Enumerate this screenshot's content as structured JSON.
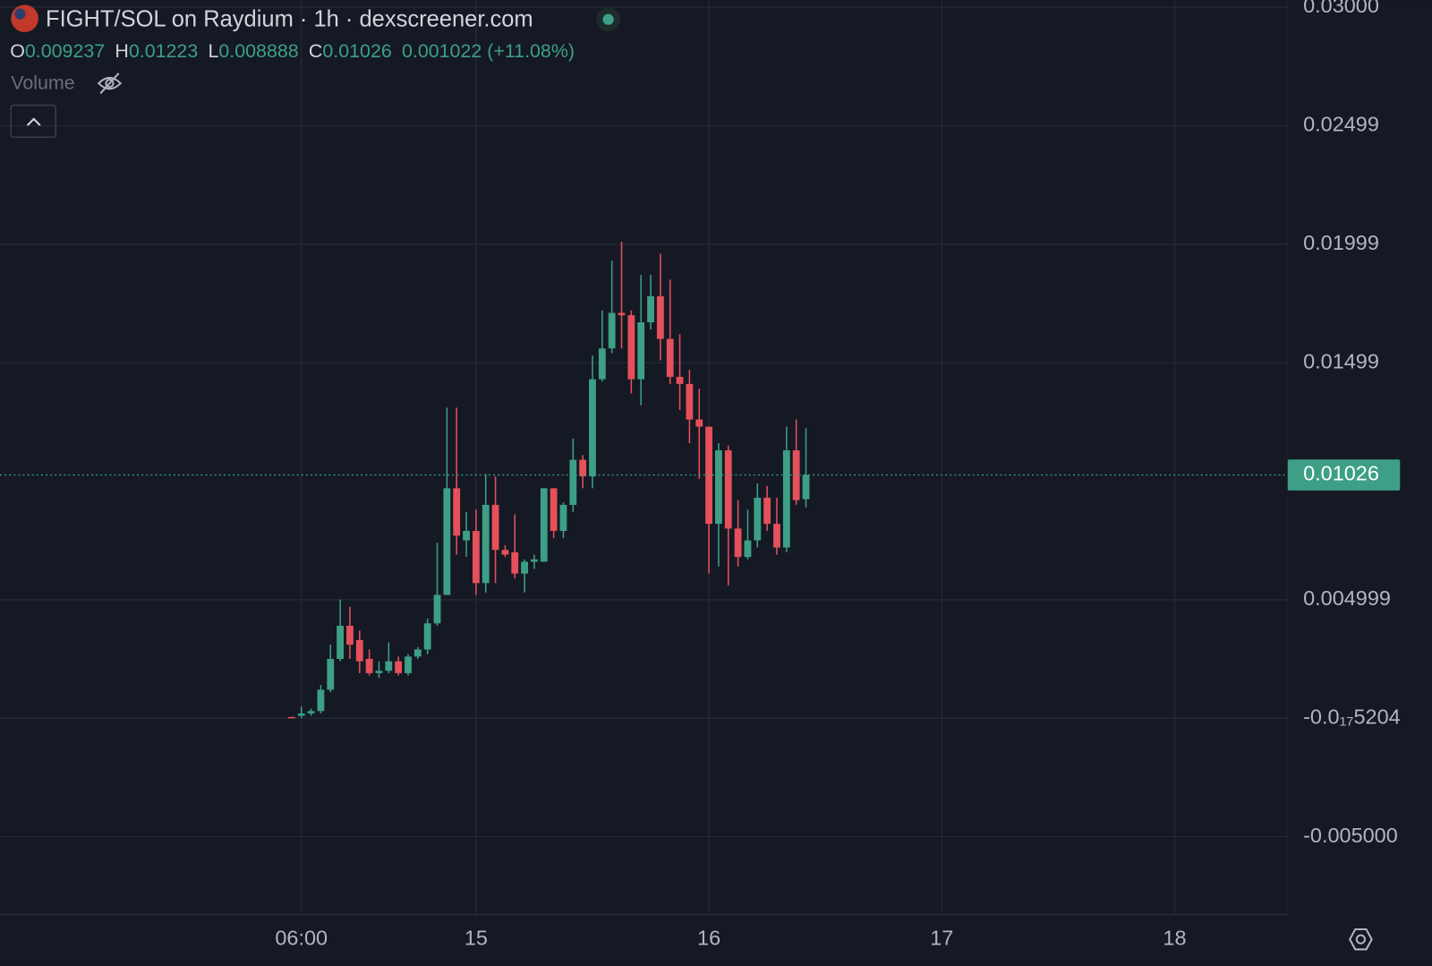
{
  "header": {
    "title": "FIGHT/SOL on Raydium · 1h · dexscreener.com",
    "ohlc_labels": [
      "O",
      "H",
      "L",
      "C"
    ],
    "change": "0.001022 (+11.08%)",
    "volume_label": "Volume"
  },
  "chart_data": {
    "type": "candlestick",
    "x": [
      5,
      6,
      7,
      8,
      9,
      10,
      11,
      12,
      13,
      14,
      15,
      16,
      17,
      18,
      19,
      20,
      21,
      22,
      23,
      24,
      25,
      26,
      27,
      28,
      29,
      30,
      31,
      32,
      33,
      34,
      35,
      36,
      37,
      38,
      39,
      40,
      41,
      42,
      43,
      44,
      45,
      46,
      47,
      48,
      49,
      50,
      51,
      52,
      53,
      54,
      55,
      56,
      57,
      58
    ],
    "open": [
      5e-05,
      0.0001,
      0.0002,
      0.0003,
      0.0012,
      0.0025,
      0.0039,
      0.0033,
      0.0025,
      0.0019,
      0.002,
      0.0024,
      0.0019,
      0.0026,
      0.0029,
      0.004,
      0.0052,
      0.0097,
      0.0075,
      0.0079,
      0.0057,
      0.009,
      0.0071,
      0.007,
      0.0061,
      0.0066,
      0.0066,
      0.0097,
      0.0079,
      0.009,
      0.0109,
      0.0102,
      0.0143,
      0.0156,
      0.0171,
      0.017,
      0.0143,
      0.0167,
      0.0178,
      0.016,
      0.0144,
      0.0141,
      0.0126,
      0.0123,
      0.0082,
      0.0113,
      0.008,
      0.0068,
      0.0075,
      0.0093,
      0.0082,
      0.0072,
      0.0113,
      0.009237
    ],
    "high": [
      6e-05,
      0.0005,
      0.0004,
      0.0014,
      0.0031,
      0.005,
      0.0047,
      0.0037,
      0.0029,
      0.0024,
      0.0032,
      0.0026,
      0.0027,
      0.003,
      0.0042,
      0.0074,
      0.0131,
      0.0131,
      0.0087,
      0.0088,
      0.0103,
      0.0102,
      0.0073,
      0.0086,
      0.0067,
      0.0069,
      0.0097,
      0.0097,
      0.0091,
      0.0118,
      0.0111,
      0.0153,
      0.0172,
      0.0193,
      0.0201,
      0.0172,
      0.0187,
      0.0187,
      0.0196,
      0.0185,
      0.0162,
      0.0147,
      0.0139,
      0.0123,
      0.0116,
      0.0115,
      0.0092,
      0.0088,
      0.0099,
      0.0098,
      0.0093,
      0.0123,
      0.0126,
      0.01223
    ],
    "low": [
      3e-05,
      0.0,
      0.0001,
      0.0002,
      0.0011,
      0.0024,
      0.0025,
      0.0019,
      0.0018,
      0.0017,
      0.0019,
      0.0018,
      0.0018,
      0.0025,
      0.0027,
      0.0039,
      0.0052,
      0.0069,
      0.0068,
      0.0052,
      0.0053,
      0.0057,
      0.0068,
      0.0059,
      0.0053,
      0.0063,
      0.0066,
      0.0076,
      0.0076,
      0.0087,
      0.0097,
      0.0097,
      0.0142,
      0.0154,
      0.0156,
      0.0137,
      0.0132,
      0.0164,
      0.0151,
      0.0141,
      0.013,
      0.0116,
      0.0101,
      0.0061,
      0.0064,
      0.0056,
      0.0064,
      0.0067,
      0.0072,
      0.0079,
      0.0069,
      0.007,
      0.009,
      0.008888
    ],
    "close": [
      3e-05,
      0.0002,
      0.0003,
      0.0012,
      0.0025,
      0.0039,
      0.0031,
      0.0024,
      0.0019,
      0.002,
      0.0024,
      0.0019,
      0.0026,
      0.0029,
      0.004,
      0.0052,
      0.0097,
      0.0077,
      0.0079,
      0.0057,
      0.009,
      0.0071,
      0.0069,
      0.0061,
      0.0066,
      0.0067,
      0.0097,
      0.0079,
      0.009,
      0.0109,
      0.0102,
      0.0143,
      0.0156,
      0.0171,
      0.017,
      0.0143,
      0.0167,
      0.0178,
      0.016,
      0.0144,
      0.0141,
      0.0126,
      0.0123,
      0.0082,
      0.0113,
      0.008,
      0.0068,
      0.0075,
      0.0093,
      0.0082,
      0.0072,
      0.0113,
      0.0092,
      0.01026
    ],
    "up_color": "#3d9f86",
    "down_color": "#e5505a",
    "xlim": [
      -25.06,
      107.65
    ],
    "xticks": [
      {
        "value": 6,
        "label": "06:00"
      },
      {
        "value": 24,
        "label": "15"
      },
      {
        "value": 48,
        "label": "16"
      },
      {
        "value": 72,
        "label": "17"
      },
      {
        "value": 96,
        "label": "18"
      }
    ],
    "ylim": [
      -0.00825,
      0.03029
    ],
    "yticks": [
      {
        "value": 0.03,
        "label": "0.03000"
      },
      0.02499,
      0.01999,
      0.01499,
      0.004999,
      {
        "value": -5.204e-18,
        "label": "-0.0₁₇5204"
      },
      {
        "value": -0.005,
        "label": "-0.005000"
      }
    ],
    "grid": true
  }
}
